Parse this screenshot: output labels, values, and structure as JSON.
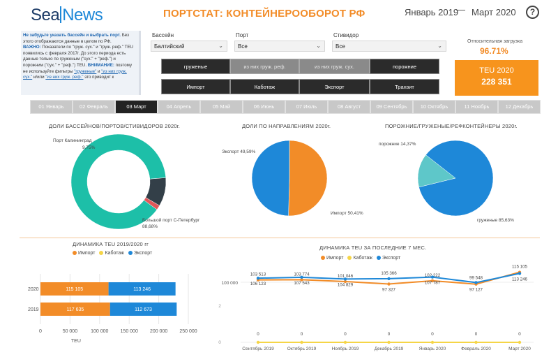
{
  "header": {
    "logo_left": "Sea",
    "logo_right": "News",
    "title": "ПОРТСТАТ: КОНТЕЙНЕРООБОРОТ РФ",
    "date_from": "Январь 2019",
    "date_sep": "—",
    "date_to": "Март 2020",
    "help": "?"
  },
  "note": {
    "line1_bold": "Не забудьте указать бассейн и выбрать порт.",
    "line1_rest": " Без этого отображаются данные в целом по РФ.",
    "line2_bold": "ВАЖНО:",
    "line2_rest": " Показатели по \"груж. сух.\" и \"груж. реф.\" TEU появились с февраля 2017г. До этого периода есть данные только по груженым (\"сух.\" + \"реф.\") и порожним (\"сух.\" + \"реф.\") TEU. ",
    "line3_bold": "ВНИМАНИЕ:",
    "line3_rest": " поэтому не используйте фильтры ",
    "link1": "\"груженые\"",
    "mid": " и ",
    "link2": "\"из них груж. сух.\"",
    "mid2": " и/или ",
    "link3": "\"из них груж. реф.\"",
    "end": " это приводит к"
  },
  "filters": {
    "basin_label": "Бассейн",
    "basin_value": "Балтийский",
    "port_label": "Порт",
    "port_value": "Все",
    "stevedore_label": "Стивидор",
    "stevedore_value": "Все"
  },
  "type_buttons": [
    "груженые",
    "из них груж. реф.",
    "из них груж. сух.",
    "порожние"
  ],
  "direction_buttons": [
    "Импорт",
    "Каботаж",
    "Экспорт",
    "Транзит"
  ],
  "kpi": {
    "load_label": "Относительная загрузка",
    "load_value": "96.71%",
    "teu_label": "TEU 2020",
    "teu_value": "228 351"
  },
  "months": [
    "01 Январь",
    "02 Февраль",
    "03 Март",
    "04 Апрель",
    "05 Май",
    "06 Июнь",
    "07 Июль",
    "08 Август",
    "09 Сентябрь",
    "10 Октябрь",
    "11 Ноябрь",
    "12 Декабрь"
  ],
  "active_month": 2,
  "colors": {
    "orange": "#f28c28",
    "blue": "#1e88d8",
    "teal": "#1dbfa8",
    "dark": "#333f48",
    "red": "#e15759",
    "lightteal": "#5ec7c9",
    "yellow": "#f5d547"
  },
  "chart_data": [
    {
      "type": "pie",
      "title": "ДОЛИ БАССЕЙНОВ/ПОРТОВ/СТИВИДОРОВ 2020г.",
      "donut": true,
      "labels": [
        "Большой порт С-Петербург",
        "Порт Калининград",
        ""
      ],
      "values": [
        88.68,
        9.75,
        1.57
      ],
      "value_labels": [
        "88,68%",
        "9,75%",
        ""
      ]
    },
    {
      "type": "pie",
      "title": "ДОЛИ ПО НАПРАВЛЕНИЯМ 2020г.",
      "labels": [
        "Импорт",
        "Экспорт"
      ],
      "values": [
        50.41,
        49.59
      ],
      "value_labels": [
        "50,41%",
        "49,59%"
      ]
    },
    {
      "type": "pie",
      "title": "ПОРОЖНИЕ/ГРУЖЕНЫЕ/РЕФКОНТЕЙНЕРЫ 2020г.",
      "labels": [
        "груженые",
        "порожние"
      ],
      "values": [
        85.63,
        14.37
      ],
      "value_labels": [
        "85,63%",
        "14,37%"
      ]
    },
    {
      "type": "bar",
      "orientation": "horizontal",
      "stacked": true,
      "title": "ДИНАМИКА TEU 2019/2020 гг",
      "categories": [
        "2020",
        "2019"
      ],
      "series": [
        {
          "name": "Импорт",
          "values": [
            115105,
            117635
          ],
          "labels": [
            "115 105",
            "117 635"
          ]
        },
        {
          "name": "Каботаж",
          "values": [
            0,
            0
          ]
        },
        {
          "name": "Экспорт",
          "values": [
            113246,
            112673
          ],
          "labels": [
            "113 246",
            "112 673"
          ]
        }
      ],
      "xlabel": "TEU",
      "xlim": [
        0,
        250000
      ],
      "xticks": [
        "0",
        "50 000",
        "100 000",
        "150 000",
        "200 000",
        "250 000"
      ],
      "legend": "top"
    },
    {
      "type": "line",
      "title": "ДИНАМИКА TEU ЗА ПОСЛЕДНИЕ 7 МЕС.",
      "categories": [
        "Сентябрь 2019",
        "Октябрь 2019",
        "Ноябрь 2019",
        "Декабрь 2019",
        "Январь 2020",
        "Февраль 2020",
        "Март 2020"
      ],
      "series": [
        {
          "name": "Импорт",
          "values": [
            103513,
            103774,
            101046,
            97327,
            102222,
            97127,
            115105
          ],
          "labels": [
            "103 513",
            "103 774",
            "101 046",
            "97 327",
            "102 222",
            "97 127",
            "115 105"
          ]
        },
        {
          "name": "Каботаж",
          "values": [
            0,
            0,
            0,
            0,
            0,
            0,
            0
          ],
          "labels": [
            "0",
            "0",
            "0",
            "0",
            "0",
            "0",
            "0"
          ]
        },
        {
          "name": "Экспорт",
          "values": [
            106123,
            107543,
            104829,
            105366,
            107787,
            99548,
            113246
          ],
          "labels": [
            "106 123",
            "107 543",
            "104 829",
            "105 366",
            "107 787",
            "99 548",
            "113 246"
          ]
        }
      ],
      "yticks": [
        "100 000"
      ],
      "side_ticks": [
        "2",
        "0"
      ],
      "legend": "top"
    }
  ]
}
